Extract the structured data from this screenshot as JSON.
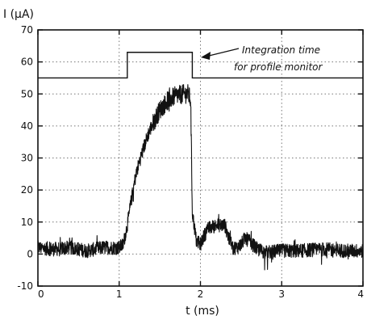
{
  "chart_data": {
    "type": "line",
    "title": "",
    "xlabel": "t   (ms)",
    "ylabel": "I  (μA)",
    "xlim": [
      0,
      4
    ],
    "ylim": [
      -10,
      70
    ],
    "grid": true,
    "grid_style": "dotted",
    "colors": {
      "trace": "#111111",
      "grid": "#777777",
      "axis": "#111111"
    },
    "x_ticks": [
      0,
      1,
      2,
      3,
      4
    ],
    "x_tick_labels": [
      "0",
      "1",
      "2",
      "3",
      "4"
    ],
    "y_ticks": [
      -10,
      0,
      10,
      20,
      30,
      40,
      50,
      60,
      70
    ],
    "y_tick_labels": [
      "-10",
      "0",
      "10",
      "20",
      "30",
      "40",
      "50",
      "60",
      "70"
    ],
    "series": [
      {
        "role": "beam-current",
        "noisy": true,
        "x": [
          0.0,
          0.2,
          0.4,
          0.6,
          0.8,
          1.0,
          1.05,
          1.1,
          1.15,
          1.2,
          1.25,
          1.3,
          1.35,
          1.4,
          1.5,
          1.6,
          1.7,
          1.8,
          1.85,
          1.88,
          1.9,
          1.95,
          2.0,
          2.05,
          2.1,
          2.2,
          2.3,
          2.35,
          2.4,
          2.45,
          2.5,
          2.55,
          2.6,
          2.7,
          2.8,
          3.0,
          3.2,
          3.5,
          3.8,
          4.0
        ],
        "y": [
          2,
          1.5,
          2,
          1,
          2,
          2,
          3,
          9,
          17,
          24,
          29,
          33,
          37,
          40,
          45,
          48,
          49.5,
          50,
          50,
          48,
          13,
          4,
          3,
          6,
          8,
          9,
          9,
          5,
          2,
          2,
          3,
          5,
          4,
          1.5,
          0.5,
          1,
          1,
          1.5,
          1,
          1
        ]
      },
      {
        "role": "integration-window",
        "x": [
          0,
          1.1,
          1.1,
          1.9,
          1.9,
          4.0
        ],
        "y": [
          55,
          55,
          63,
          63,
          55,
          55
        ]
      }
    ],
    "annotations": [
      {
        "line1": "Integration time",
        "line2": "for  profile  monitor",
        "points_to": {
          "x": 1.9,
          "y": 62
        }
      }
    ]
  }
}
